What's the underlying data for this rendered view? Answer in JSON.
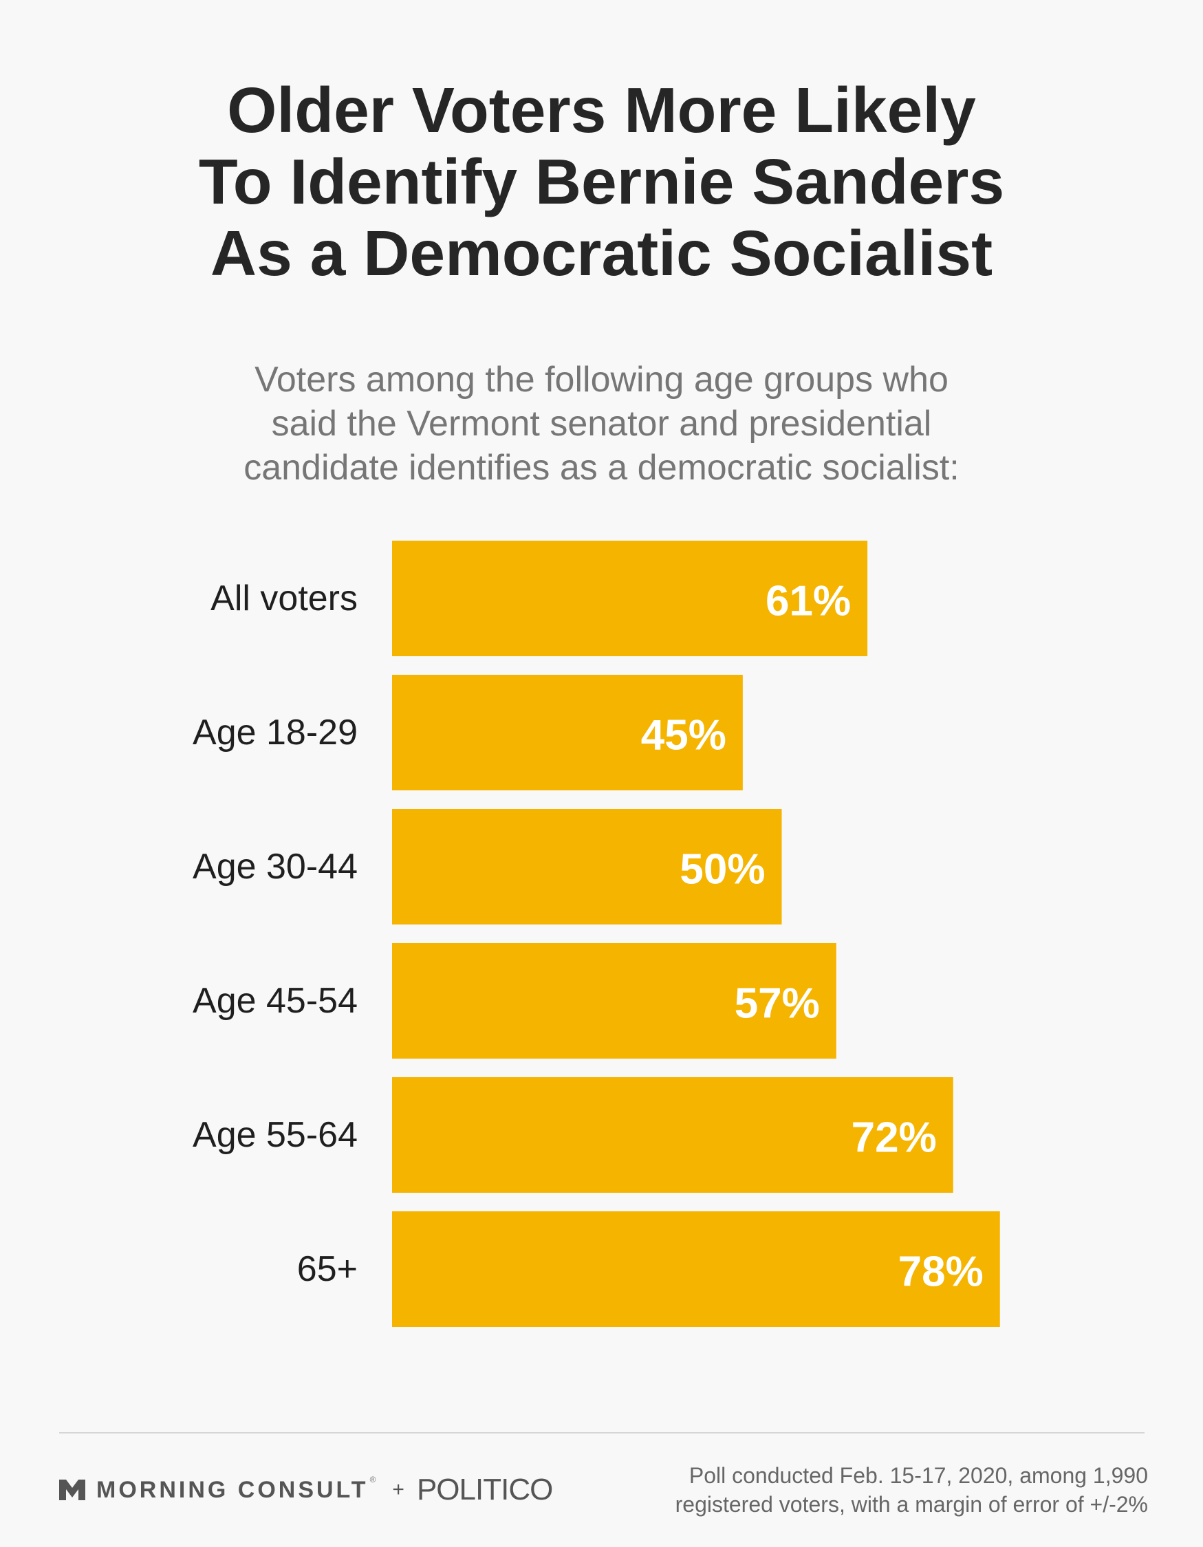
{
  "title_lines": [
    "Older Voters More Likely",
    "To Identify Bernie Sanders",
    "As a Democratic Socialist"
  ],
  "subtitle_lines": [
    "Voters among the following age groups who",
    "said the Vermont senator and presidential",
    "candidate identifies as a democratic socialist:"
  ],
  "chart_data": {
    "type": "bar",
    "orientation": "horizontal",
    "title": "Older Voters More Likely To Identify Bernie Sanders As a Democratic Socialist",
    "categories": [
      "All voters",
      "Age 18-29",
      "Age 30-44",
      "Age 45-54",
      "Age 55-64",
      "65+"
    ],
    "values": [
      61,
      45,
      50,
      57,
      72,
      78
    ],
    "value_labels": [
      "61%",
      "45%",
      "50%",
      "57%",
      "72%",
      "78%"
    ],
    "unit": "%",
    "xlim": [
      0,
      100
    ],
    "grid": false,
    "legend": "none",
    "bar_color": "#f5b400"
  },
  "branding": {
    "morning_consult": "MORNING CONSULT",
    "registered_mark": "®",
    "plus": "+",
    "politico": "POLITICO",
    "icon": "morning-consult-chevron-icon"
  },
  "footnote_lines": [
    "Poll conducted Feb. 15-17, 2020, among 1,990",
    "registered voters, with a margin of error of +/-2%"
  ]
}
